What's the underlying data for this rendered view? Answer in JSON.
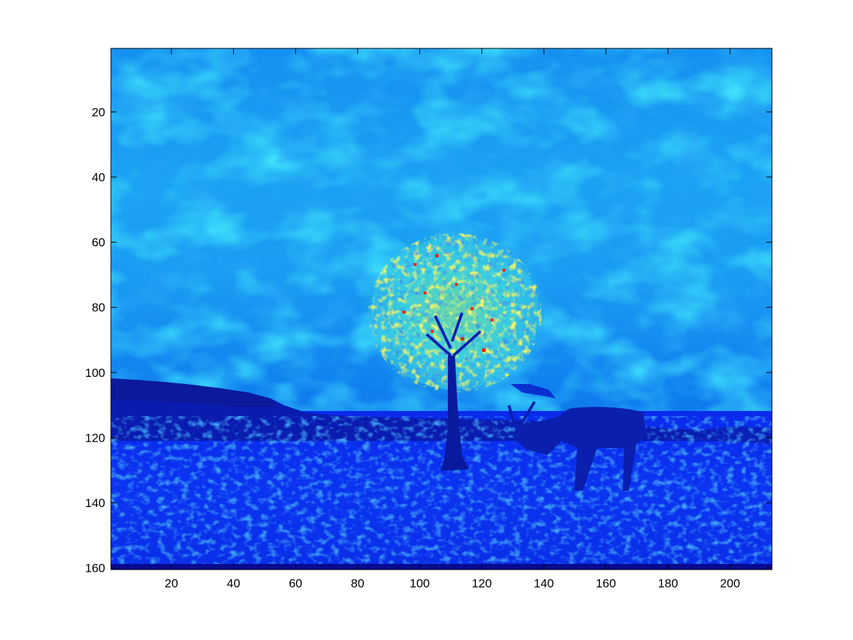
{
  "figure": {
    "image_description_kind": "jet-colormap intensity image",
    "colormap": "jet",
    "background": "#ffffff",
    "axes_box_color": "#000000"
  },
  "image": {
    "rows": 160,
    "cols": 213,
    "y_direction": "reversed (row 1 at top)"
  },
  "axes": {
    "x_ticks": [
      20,
      40,
      60,
      80,
      100,
      120,
      140,
      160,
      180,
      200
    ],
    "y_ticks": [
      20,
      40,
      60,
      80,
      100,
      120,
      140,
      160
    ],
    "x_tick_labels": [
      "20",
      "40",
      "60",
      "80",
      "100",
      "120",
      "140",
      "160",
      "180",
      "200"
    ],
    "y_tick_labels": [
      "20",
      "40",
      "60",
      "80",
      "100",
      "120",
      "140",
      "160"
    ],
    "xlim": [
      0.5,
      213.5
    ],
    "ylim": [
      0.5,
      160.5
    ],
    "grid": false
  },
  "colors": {
    "sky_light": "#1aa6f2",
    "sky_mid": "#0a7af0",
    "ground_dark": "#0a1ee6",
    "ground_mid": "#0b3cf0",
    "tree_yellow": "#f0f020",
    "tree_cyan": "#30d8e8",
    "tree_red": "#f02010",
    "deer_dark": "#0820b8",
    "hill_dark": "#0a1aa0",
    "bottom_strip": "#0a0a90"
  },
  "scene_features": [
    "sky-with-clouds",
    "hill-silhouette",
    "tree-canopy",
    "tree-trunk",
    "deer",
    "grass-field"
  ]
}
